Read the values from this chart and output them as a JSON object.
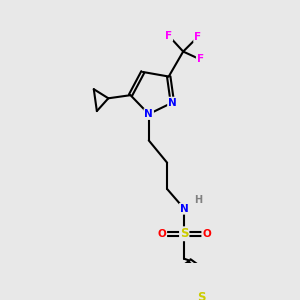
{
  "bg_color": "#e8e8e8",
  "atom_colors": {
    "C": "#000000",
    "N": "#0000ff",
    "S_sulfo": "#cccc00",
    "S_thio": "#cccc00",
    "O": "#ff0000",
    "F": "#ff00ff",
    "H": "#808080"
  },
  "bond_color": "#000000",
  "bond_width": 1.5
}
